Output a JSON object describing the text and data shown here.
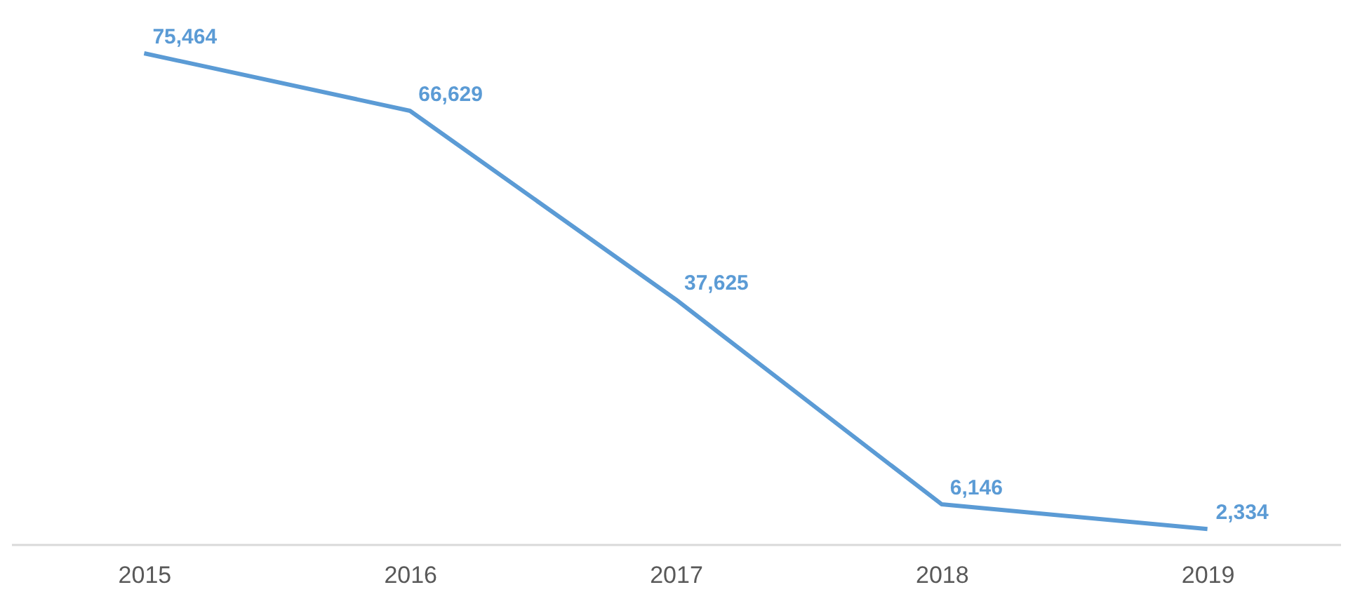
{
  "chart_data": {
    "type": "line",
    "categories": [
      "2015",
      "2016",
      "2017",
      "2018",
      "2019"
    ],
    "series": [
      {
        "color": "#5b9bd5",
        "values": [
          75464,
          66629,
          37625,
          6146,
          2334
        ],
        "value_labels": [
          "75,464",
          "66,629",
          "37,625",
          "6,146",
          "2,334"
        ]
      }
    ],
    "line_style": "solid"
  }
}
